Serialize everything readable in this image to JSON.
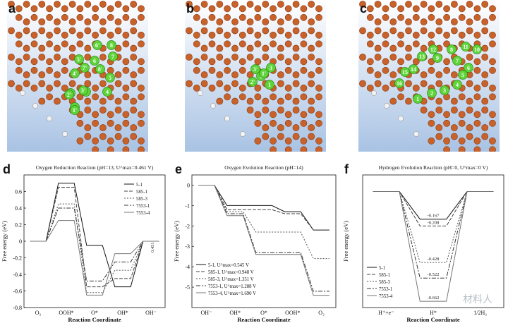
{
  "panels": {
    "a": {
      "letter": "a",
      "atom_labels": [
        "1",
        "2",
        "3",
        "4",
        "5",
        "6",
        "7",
        "8",
        "1'",
        "2'",
        "3'",
        "4'",
        "5'",
        "6'",
        "7'",
        "8'"
      ]
    },
    "b": {
      "letter": "b",
      "atom_labels": [
        "1",
        "2",
        "3",
        "2'",
        "3'",
        "1'"
      ]
    },
    "c": {
      "letter": "c",
      "atom_labels": [
        "1",
        "2",
        "3",
        "4",
        "5",
        "6",
        "7",
        "8",
        "9",
        "10",
        "11",
        "12",
        "13",
        "14",
        "15",
        "16"
      ]
    },
    "d": {
      "letter": "d"
    },
    "e": {
      "letter": "e"
    },
    "f": {
      "letter": "f"
    }
  },
  "colors": {
    "carbon": "#c8622a",
    "hydrogen": "#f2f2f2",
    "highlight": "#5fd33a",
    "bg_top": "#ffffff",
    "bg_bottom": "#a9c3e4"
  },
  "watermark": "材料人",
  "chart_data": [
    {
      "id": "d",
      "type": "line",
      "title": "Oxygen Reduction Reaction (pH=13, U^max=0.461 V)",
      "xlabel": "Reaction Coordinate",
      "ylabel": "Free energy (eV)",
      "categories": [
        "O₂",
        "OOH*",
        "O*",
        "OH*",
        "OH⁻"
      ],
      "ylim": [
        -0.8,
        0.8
      ],
      "yticks": [
        -0.8,
        -0.6,
        -0.4,
        -0.2,
        0.0,
        0.2,
        0.4,
        0.6
      ],
      "annotation": "0.451",
      "series": [
        {
          "name": "5-1",
          "values": [
            0,
            0.7,
            -0.05,
            -0.55,
            0
          ]
        },
        {
          "name": "585-1",
          "values": [
            0,
            0.65,
            -0.55,
            -0.45,
            0
          ]
        },
        {
          "name": "585-3",
          "values": [
            0,
            0.45,
            -0.62,
            -0.35,
            0
          ]
        },
        {
          "name": "7553-1",
          "values": [
            0,
            0.4,
            -0.48,
            -0.25,
            0
          ]
        },
        {
          "name": "7553-4",
          "values": [
            0,
            0.25,
            -0.65,
            -0.15,
            0
          ]
        }
      ]
    },
    {
      "id": "e",
      "type": "line",
      "title": "Oxygen Evolution Reaction (pH=14)",
      "xlabel": "Reaction Coordinate",
      "ylabel": "Free energy (eV)",
      "categories": [
        "OH⁻",
        "OH*",
        "O*",
        "OOH*",
        "O₂"
      ],
      "ylim": [
        -6,
        0.5
      ],
      "yticks": [
        -5,
        -4,
        -3,
        -2,
        -1,
        0
      ],
      "legend": [
        "5-1, U^max=0.545 V",
        "585-1, U^max=0.948 V",
        "585-3, U^max=1.351 V",
        "7553-1, U^max=1.288 V",
        "7553-4, U^max=1.690 V"
      ],
      "series": [
        {
          "name": "5-1",
          "values": [
            0,
            -1.0,
            -1.0,
            -1.3,
            -2.2
          ]
        },
        {
          "name": "585-1",
          "values": [
            0,
            -1.2,
            -1.2,
            -1.4,
            -2.2
          ]
        },
        {
          "name": "585-3",
          "values": [
            0,
            -1.3,
            -2.3,
            -2.3,
            -3.6
          ]
        },
        {
          "name": "7553-1",
          "values": [
            0,
            -1.4,
            -3.3,
            -3.3,
            -5.2
          ]
        },
        {
          "name": "7553-4",
          "values": [
            0,
            -1.5,
            -3.4,
            -3.4,
            -5.4
          ]
        }
      ]
    },
    {
      "id": "f",
      "type": "line",
      "title": "Hydrogen Evolution Reaction (pH=0, U^max=0 V)",
      "xlabel": "Reaction Coordinate",
      "ylabel": "Free energy (eV)",
      "categories": [
        "H⁺+e⁻",
        "H*",
        "1/2H₂"
      ],
      "ylim": [
        -0.7,
        0.1
      ],
      "level_labels": [
        "-0.167",
        "-0.208",
        "-0.428",
        "-0.522",
        "-0.662"
      ],
      "series": [
        {
          "name": "5-1",
          "values": [
            0,
            -0.167,
            0
          ]
        },
        {
          "name": "585-1",
          "values": [
            0,
            -0.208,
            0
          ]
        },
        {
          "name": "585-3",
          "values": [
            0,
            -0.428,
            0
          ]
        },
        {
          "name": "7553-1",
          "values": [
            0,
            -0.522,
            0
          ]
        },
        {
          "name": "7553-4",
          "values": [
            0,
            -0.662,
            0
          ]
        }
      ]
    }
  ]
}
